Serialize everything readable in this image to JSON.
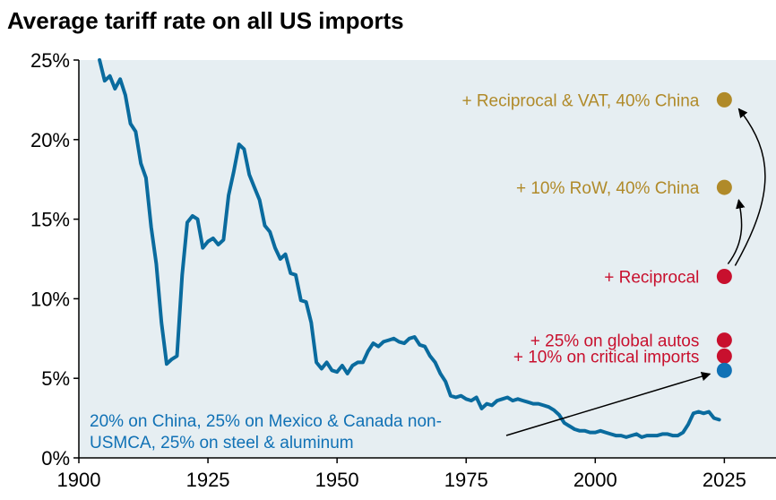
{
  "colors": {
    "plot_bg": "#e6eef2",
    "line": "#0a6b9e",
    "gold": "#b08a29",
    "red": "#c8102e",
    "blue": "#1071b5",
    "arrow": "#000000",
    "axis": "#000000"
  },
  "chart_data": {
    "type": "line",
    "title": "Average tariff rate on all US imports",
    "xlim": [
      1900,
      2035
    ],
    "ylim": [
      0,
      25
    ],
    "x_ticks": [
      1900,
      1925,
      1950,
      1975,
      2000,
      2025
    ],
    "x_tick_labels": [
      "1900",
      "1925",
      "1950",
      "1975",
      "2000",
      "2025"
    ],
    "y_ticks": [
      0,
      5,
      10,
      15,
      20,
      25
    ],
    "y_tick_labels": [
      "0%",
      "5%",
      "10%",
      "15%",
      "20%",
      "25%"
    ],
    "series": [
      {
        "name": "Average tariff rate",
        "x": [
          1904,
          1905,
          1906,
          1907,
          1908,
          1909,
          1910,
          1911,
          1912,
          1913,
          1914,
          1915,
          1916,
          1917,
          1918,
          1919,
          1920,
          1921,
          1922,
          1923,
          1924,
          1925,
          1926,
          1927,
          1928,
          1929,
          1930,
          1931,
          1932,
          1933,
          1934,
          1935,
          1936,
          1937,
          1938,
          1939,
          1940,
          1941,
          1942,
          1943,
          1944,
          1945,
          1946,
          1947,
          1948,
          1949,
          1950,
          1951,
          1952,
          1953,
          1954,
          1955,
          1956,
          1957,
          1958,
          1959,
          1960,
          1961,
          1962,
          1963,
          1964,
          1965,
          1966,
          1967,
          1968,
          1969,
          1970,
          1971,
          1972,
          1973,
          1974,
          1975,
          1976,
          1977,
          1978,
          1979,
          1980,
          1981,
          1982,
          1983,
          1984,
          1985,
          1986,
          1987,
          1988,
          1989,
          1990,
          1991,
          1992,
          1993,
          1994,
          1995,
          1996,
          1997,
          1998,
          1999,
          2000,
          2001,
          2002,
          2003,
          2004,
          2005,
          2006,
          2007,
          2008,
          2009,
          2010,
          2011,
          2012,
          2013,
          2014,
          2015,
          2016,
          2017,
          2018,
          2019,
          2020,
          2021,
          2022,
          2023,
          2024
        ],
        "values": [
          25.0,
          23.7,
          24.0,
          23.2,
          23.8,
          22.8,
          21.0,
          20.5,
          18.5,
          17.6,
          14.5,
          12.2,
          8.5,
          5.9,
          6.2,
          6.4,
          11.5,
          14.8,
          15.2,
          15.0,
          13.2,
          13.6,
          13.8,
          13.4,
          13.7,
          16.5,
          18.0,
          19.7,
          19.4,
          17.8,
          17.0,
          16.2,
          14.6,
          14.2,
          13.2,
          12.5,
          12.8,
          11.6,
          11.5,
          9.9,
          9.8,
          8.5,
          6.0,
          5.6,
          6.0,
          5.5,
          5.4,
          5.8,
          5.3,
          5.8,
          6.0,
          6.0,
          6.7,
          7.2,
          7.0,
          7.3,
          7.4,
          7.5,
          7.3,
          7.2,
          7.5,
          7.6,
          7.1,
          7.0,
          6.4,
          6.0,
          5.3,
          4.8,
          3.9,
          3.8,
          3.9,
          3.7,
          3.6,
          3.8,
          3.1,
          3.4,
          3.3,
          3.6,
          3.7,
          3.8,
          3.6,
          3.7,
          3.6,
          3.5,
          3.4,
          3.4,
          3.3,
          3.2,
          3.0,
          2.7,
          2.2,
          2.0,
          1.8,
          1.7,
          1.7,
          1.6,
          1.6,
          1.7,
          1.6,
          1.5,
          1.4,
          1.4,
          1.3,
          1.4,
          1.5,
          1.3,
          1.4,
          1.4,
          1.4,
          1.5,
          1.5,
          1.4,
          1.4,
          1.6,
          2.1,
          2.8,
          2.9,
          2.8,
          2.9,
          2.5,
          2.4
        ]
      }
    ],
    "scenarios": [
      {
        "label": "+ Reciprocal & VAT, 40% China",
        "x": 2025,
        "value": 22.5,
        "color": "gold"
      },
      {
        "label": "+ 10% RoW, 40% China",
        "x": 2025,
        "value": 17.0,
        "color": "gold"
      },
      {
        "label": "+ Reciprocal",
        "x": 2025,
        "value": 11.4,
        "color": "red"
      },
      {
        "label": "+ 25% on global autos",
        "x": 2025,
        "value": 7.4,
        "color": "red"
      },
      {
        "label": "+ 10% on critical imports",
        "x": 2025,
        "value": 6.4,
        "color": "red"
      },
      {
        "label": "20% on China, 25% on Mexico & Canada non-USMCA, 25% on steel & aluminum",
        "x": 2025,
        "value": 5.5,
        "color": "blue"
      }
    ],
    "annotation_lines": [
      "20% on China, 25% on Mexico & Canada non-",
      "USMCA, 25% on steel & aluminum"
    ],
    "grid": false
  }
}
